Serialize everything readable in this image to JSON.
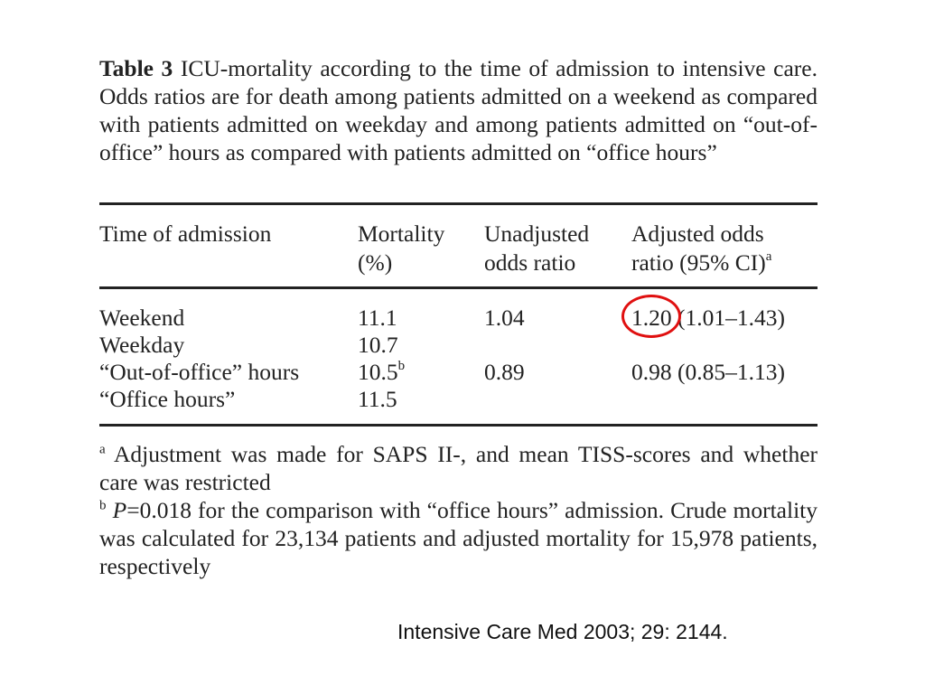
{
  "caption": {
    "label": "Table 3",
    "text": "ICU-mortality according to the time of admission to intensive care. Odds ratios are for death among patients admitted on a weekend as compared with patients admitted on weekday and among patients admitted on “out-of-office” hours as compared with patients admitted on “office hours”"
  },
  "table": {
    "headers": {
      "time": "Time of admission",
      "mortality_line1": "Mortality",
      "mortality_line2": "(%)",
      "unadjusted_line1": "Unadjusted",
      "unadjusted_line2": "odds ratio",
      "adjusted_line1": "Adjusted odds",
      "adjusted_line2": "ratio (95% CI)",
      "adjusted_sup": "a"
    },
    "rows": [
      {
        "time": "Weekend",
        "mortality": "11.1",
        "mortality_sup": "",
        "unadjusted": "1.04",
        "adjusted": "1.20 (1.01–1.43)"
      },
      {
        "time": "Weekday",
        "mortality": "10.7",
        "mortality_sup": "",
        "unadjusted": "",
        "adjusted": ""
      },
      {
        "time": "“Out-of-office” hours",
        "mortality": "10.5",
        "mortality_sup": "b",
        "unadjusted": "0.89",
        "adjusted": "0.98 (0.85–1.13)"
      },
      {
        "time": "“Office hours”",
        "mortality": "11.5",
        "mortality_sup": "",
        "unadjusted": "",
        "adjusted": ""
      }
    ]
  },
  "highlight": {
    "target": "1.20",
    "color": "#e01010"
  },
  "footnotes": [
    {
      "mark": "a",
      "text": "Adjustment was made for SAPS II-, and mean TISS-scores and whether care was restricted"
    },
    {
      "mark": "b",
      "italic_part": "P",
      "text": "=0.018 for the comparison with “office hours” admission. Crude mortality was calculated for 23,134 patients and adjusted mortality for 15,978 patients, respectively"
    }
  ],
  "citation": "Intensive Care Med 2003; 29: 2144."
}
